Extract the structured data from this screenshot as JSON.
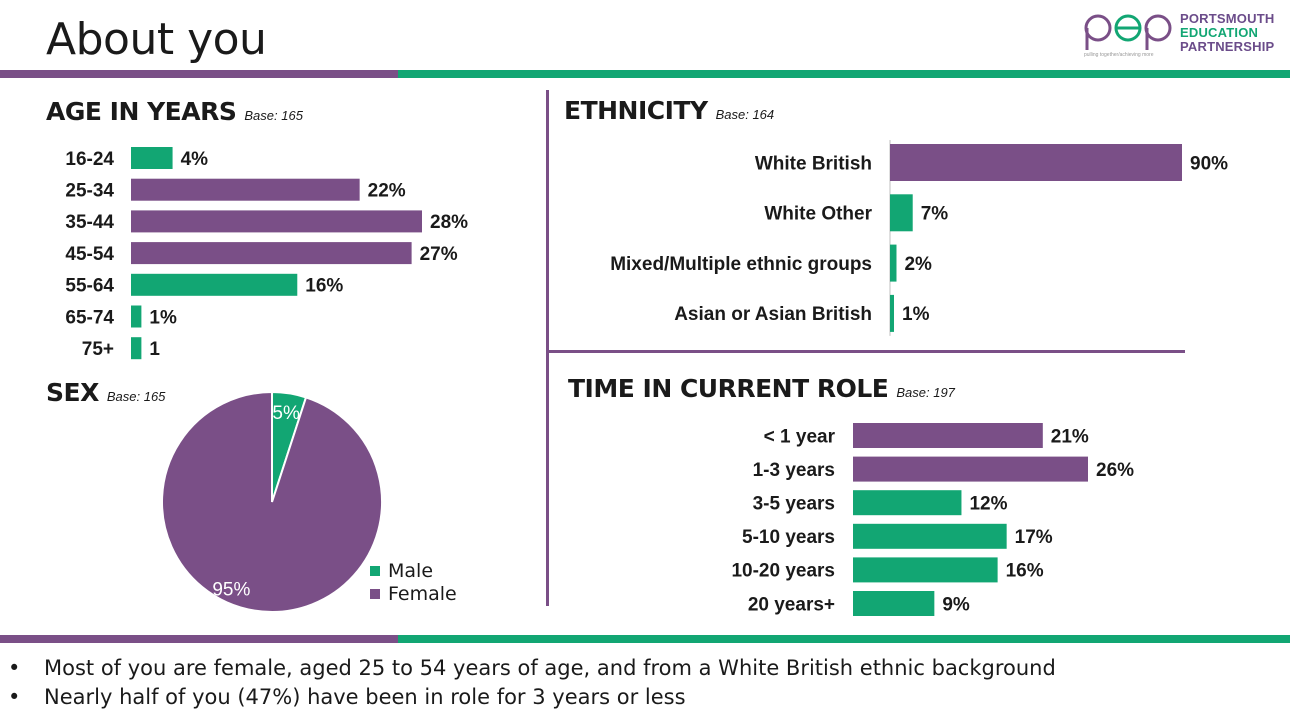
{
  "page": {
    "title": "About you",
    "colors": {
      "purple": "#7a4f87",
      "green": "#12a673",
      "text": "#1a1a1a"
    }
  },
  "logo": {
    "mark": "pep",
    "lines": [
      "PORTSMOUTH",
      "EDUCATION",
      "PARTNERSHIP"
    ],
    "tagline": "pulling together/achieving more"
  },
  "age": {
    "title": "AGE IN YEARS",
    "base": "Base: 165"
  },
  "sex": {
    "title": "SEX",
    "base": "Base: 165"
  },
  "ethnicity": {
    "title": "ETHNICITY",
    "base": "Base: 164"
  },
  "role": {
    "title": "TIME IN CURRENT ROLE",
    "base": "Base: 197"
  },
  "bullets": [
    "Most of you are female, aged 25 to 54 years of age, and from a White British ethnic background",
    "Nearly half of you (47%) have been in role for 3 years or less"
  ],
  "chart_data": [
    {
      "id": "age",
      "type": "bar",
      "orientation": "horizontal",
      "categories": [
        "16-24",
        "25-34",
        "35-44",
        "45-54",
        "55-64",
        "65-74",
        "75+"
      ],
      "values": [
        4,
        22,
        28,
        27,
        16,
        1,
        1
      ],
      "labels": [
        "4%",
        "22%",
        "28%",
        "27%",
        "16%",
        "1%",
        "1"
      ],
      "colors": [
        "#12a673",
        "#7a4f87",
        "#7a4f87",
        "#7a4f87",
        "#12a673",
        "#12a673",
        "#12a673"
      ],
      "xlim": [
        0,
        28
      ]
    },
    {
      "id": "sex",
      "type": "pie",
      "categories": [
        "Male",
        "Female"
      ],
      "values": [
        5,
        95
      ],
      "labels": [
        "5%",
        "95%"
      ],
      "colors": [
        "#12a673",
        "#7a4f87"
      ],
      "legend": "bottom-right"
    },
    {
      "id": "ethnicity",
      "type": "bar",
      "orientation": "horizontal",
      "categories": [
        "White British",
        "White Other",
        "Mixed/Multiple ethnic groups",
        "Asian or Asian British"
      ],
      "values": [
        90,
        7,
        2,
        1
      ],
      "labels": [
        "90%",
        "7%",
        "2%",
        "1%"
      ],
      "colors": [
        "#7a4f87",
        "#12a673",
        "#12a673",
        "#12a673"
      ],
      "xlim": [
        0,
        90
      ]
    },
    {
      "id": "role",
      "type": "bar",
      "orientation": "horizontal",
      "categories": [
        "< 1 year",
        "1-3 years",
        "3-5 years",
        "5-10 years",
        "10-20 years",
        "20 years+"
      ],
      "values": [
        21,
        26,
        12,
        17,
        16,
        9
      ],
      "labels": [
        "21%",
        "26%",
        "12%",
        "17%",
        "16%",
        "9%"
      ],
      "colors": [
        "#7a4f87",
        "#7a4f87",
        "#12a673",
        "#12a673",
        "#12a673",
        "#12a673"
      ],
      "xlim": [
        0,
        26
      ]
    }
  ]
}
